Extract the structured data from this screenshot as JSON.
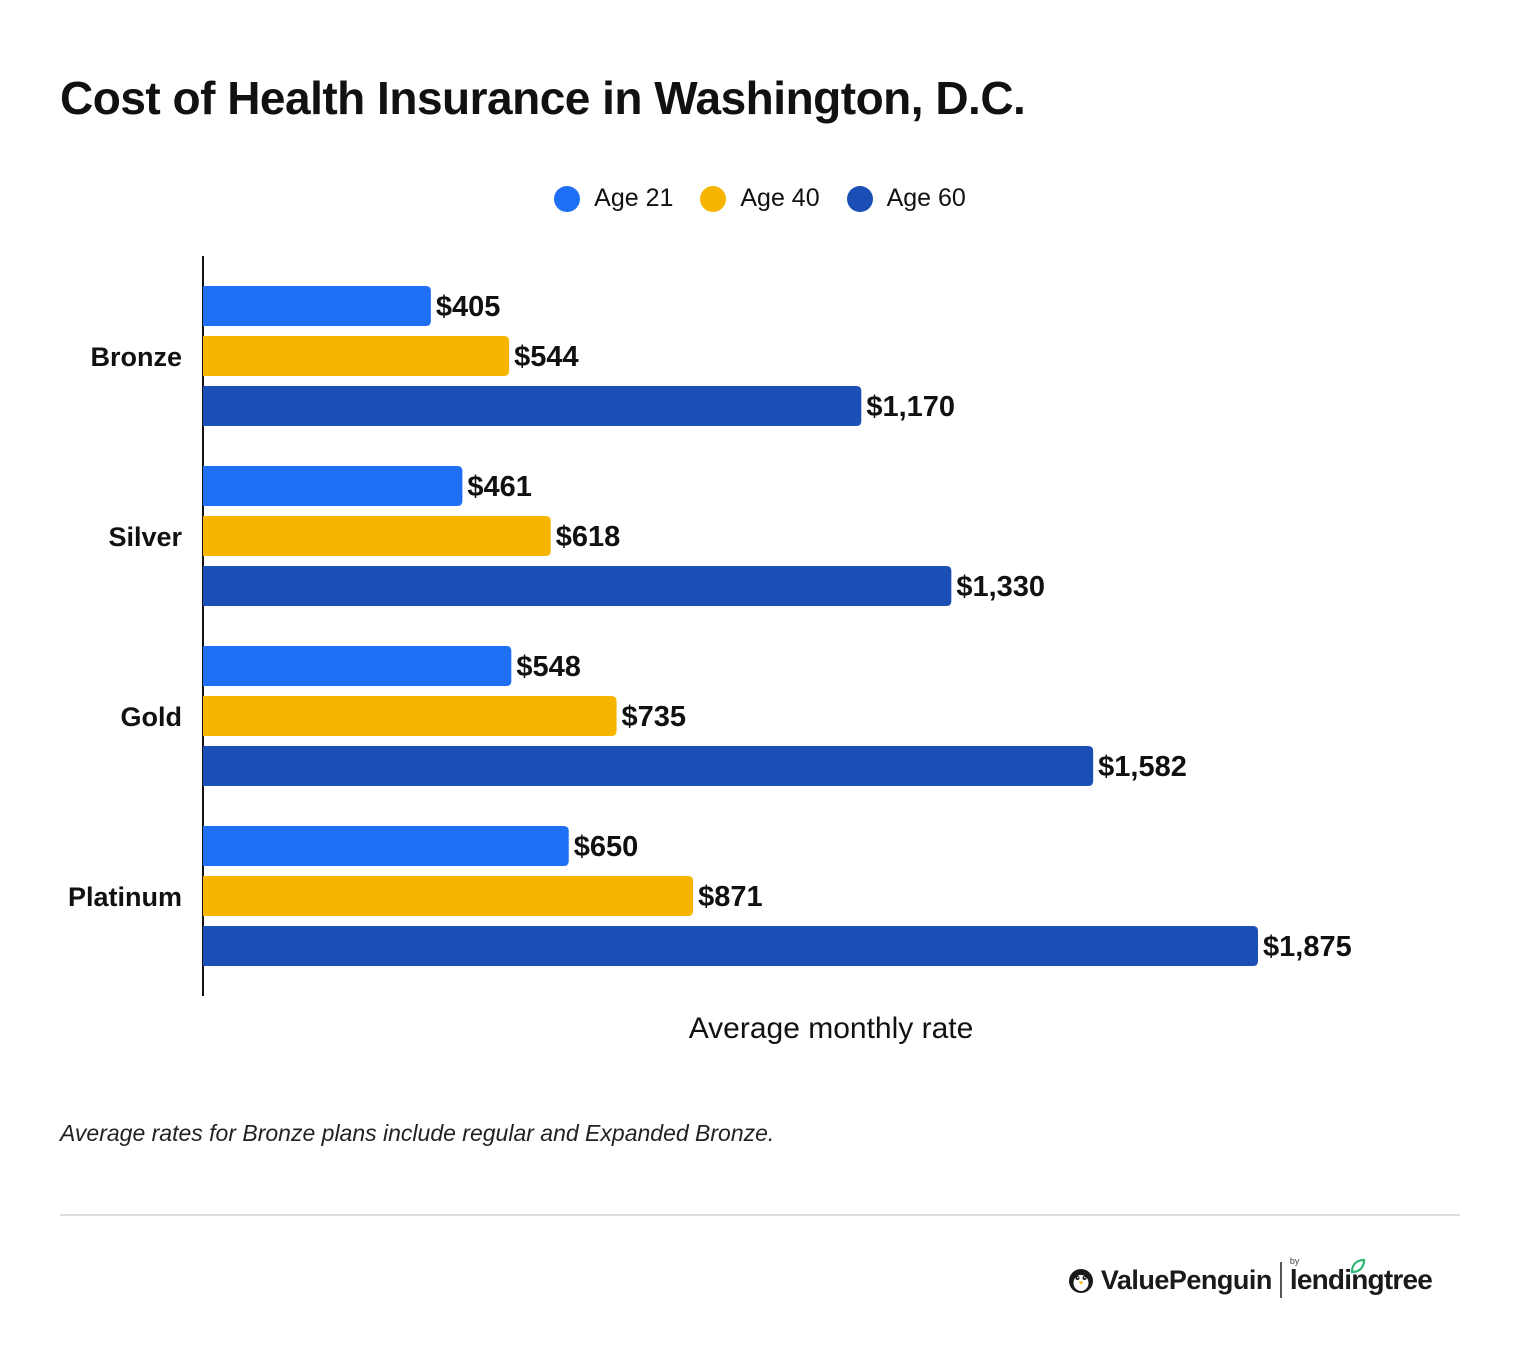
{
  "title": "Cost of Health Insurance in Washington, D.C.",
  "colors": {
    "age21": "#1f6ff4",
    "age40": "#f7b500",
    "age60": "#1b4fb5"
  },
  "chart_data": {
    "type": "bar",
    "orientation": "horizontal",
    "categories": [
      "Bronze",
      "Silver",
      "Gold",
      "Platinum"
    ],
    "series": [
      {
        "name": "Age 21",
        "color": "#1f6ff4",
        "values": [
          405,
          461,
          548,
          650
        ],
        "labels": [
          "$405",
          "$461",
          "$548",
          "$650"
        ]
      },
      {
        "name": "Age 40",
        "color": "#f7b500",
        "values": [
          544,
          618,
          735,
          871
        ],
        "labels": [
          "$544",
          "$618",
          "$735",
          "$871"
        ]
      },
      {
        "name": "Age 60",
        "color": "#1b4fb5",
        "values": [
          1170,
          1330,
          1582,
          1875
        ],
        "labels": [
          "$1,170",
          "$1,330",
          "$1,582",
          "$1,875"
        ]
      }
    ],
    "xlabel": "Average monthly rate",
    "ylabel": "",
    "xlim": [
      0,
      1875
    ],
    "legend_position": "top-center",
    "grid": false
  },
  "note": "Average rates for Bronze plans include regular and Expanded Bronze.",
  "brand": {
    "valuepenguin": "ValuePenguin",
    "by": "by",
    "lendingtree": "lendingtree"
  }
}
